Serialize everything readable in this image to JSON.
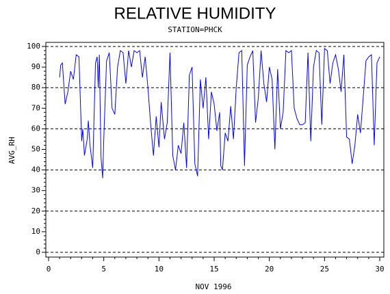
{
  "chart_data": {
    "type": "line",
    "title": "RELATIVE HUMIDITY",
    "subtitle": "STATION=PHCK",
    "x_label": "NOV 1996",
    "y_label": "AVG_RH",
    "x": [
      1,
      1.1,
      1.25,
      1.5,
      1.75,
      2,
      2.25,
      2.5,
      2.75,
      3,
      3.1,
      3.25,
      3.5,
      3.6,
      3.75,
      4,
      4.25,
      4.4,
      4.5,
      4.6,
      4.75,
      4.9,
      5,
      5.25,
      5.5,
      5.75,
      6,
      6.25,
      6.5,
      6.75,
      7,
      7.25,
      7.5,
      7.75,
      8,
      8.25,
      8.5,
      8.75,
      9,
      9.25,
      9.5,
      9.75,
      10,
      10.2,
      10.5,
      10.75,
      11,
      11.25,
      11.5,
      11.75,
      12,
      12.25,
      12.5,
      12.75,
      13,
      13.25,
      13.5,
      13.75,
      14,
      14.25,
      14.5,
      14.75,
      15,
      15.25,
      15.5,
      15.6,
      15.75,
      16,
      16.25,
      16.5,
      16.75,
      17,
      17.25,
      17.5,
      17.75,
      18,
      18.25,
      18.5,
      18.75,
      19,
      19.25,
      19.5,
      19.75,
      20,
      20.25,
      20.5,
      20.75,
      21,
      21.25,
      21.5,
      21.75,
      22,
      22.25,
      22.5,
      22.75,
      23,
      23.25,
      23.5,
      23.75,
      24,
      24.25,
      24.5,
      24.75,
      25,
      25.25,
      25.5,
      25.75,
      26,
      26.25,
      26.5,
      26.75,
      27,
      27.25,
      27.5,
      27.75,
      28,
      28.25,
      28.5,
      28.75,
      29,
      29.25,
      29.5,
      29.75,
      30
    ],
    "series": [
      {
        "name": "AVG_RH",
        "color": "#0000ff",
        "values": [
          85,
          91,
          92,
          72,
          78,
          88,
          84,
          96,
          95,
          54,
          60,
          47,
          55,
          64,
          52,
          41,
          92,
          95,
          80,
          96,
          46,
          36,
          55,
          93,
          97,
          70,
          67,
          90,
          98,
          97,
          82,
          98,
          90,
          98,
          97,
          98,
          85,
          95,
          80,
          62,
          47,
          66,
          51,
          73,
          55,
          63,
          97,
          47,
          40,
          52,
          48,
          63,
          41,
          86,
          90,
          43,
          37,
          84,
          70,
          85,
          55,
          78,
          72,
          59,
          68,
          42,
          40,
          58,
          54,
          71,
          55,
          80,
          97,
          98,
          42,
          91,
          95,
          98,
          63,
          75,
          98,
          82,
          73,
          90,
          84,
          50,
          89,
          60,
          68,
          98,
          97,
          98,
          70,
          65,
          62,
          62,
          63,
          97,
          54,
          90,
          98,
          97,
          62,
          99,
          98,
          82,
          92,
          96,
          89,
          78,
          96,
          56,
          55,
          43,
          52,
          67,
          58,
          75,
          93,
          95,
          96,
          52,
          92,
          95
        ]
      }
    ],
    "xlim": [
      0,
      30
    ],
    "ylim": [
      0,
      100
    ],
    "xticks": [
      0,
      5,
      10,
      15,
      20,
      25,
      30
    ],
    "yticks": [
      0,
      10,
      20,
      30,
      40,
      50,
      60,
      70,
      80,
      90,
      100
    ],
    "ref_lines": [
      0,
      20,
      40,
      60,
      80,
      100
    ]
  }
}
